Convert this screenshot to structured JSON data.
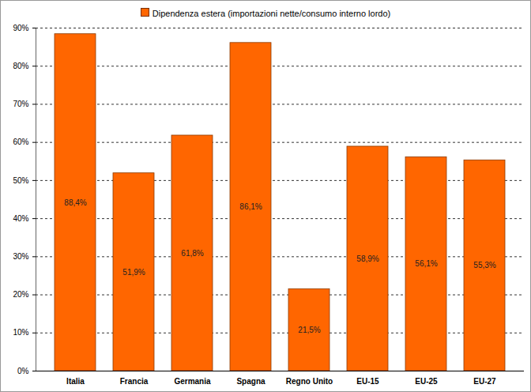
{
  "chart_data": {
    "type": "bar",
    "categories": [
      "Italia",
      "Francia",
      "Germania",
      "Spagna",
      "Regno Unito",
      "EU-15",
      "EU-25",
      "EU-27"
    ],
    "series": [
      {
        "name": "Dipendenza estera (importazioni nette/consumo interno lordo)",
        "color": "#ff6600",
        "values": [
          88.4,
          51.9,
          61.8,
          86.1,
          21.5,
          58.9,
          56.1,
          55.3
        ],
        "value_labels": [
          "88,4%",
          "51,9%",
          "61,8%",
          "86,1%",
          "21,5%",
          "58,9%",
          "56,1%",
          "55,3%"
        ]
      }
    ],
    "ylim": [
      0,
      90
    ],
    "yticks": [
      {
        "value": 0,
        "label": "0%"
      },
      {
        "value": 10,
        "label": "10%"
      },
      {
        "value": 20,
        "label": "20%"
      },
      {
        "value": 30,
        "label": "30%"
      },
      {
        "value": 40,
        "label": "40%"
      },
      {
        "value": 50,
        "label": "50%"
      },
      {
        "value": 60,
        "label": "60%"
      },
      {
        "value": 70,
        "label": "70%"
      },
      {
        "value": 80,
        "label": "80%"
      },
      {
        "value": 90,
        "label": "90%"
      }
    ],
    "grid": true,
    "legend": "top",
    "data_labels": true
  }
}
